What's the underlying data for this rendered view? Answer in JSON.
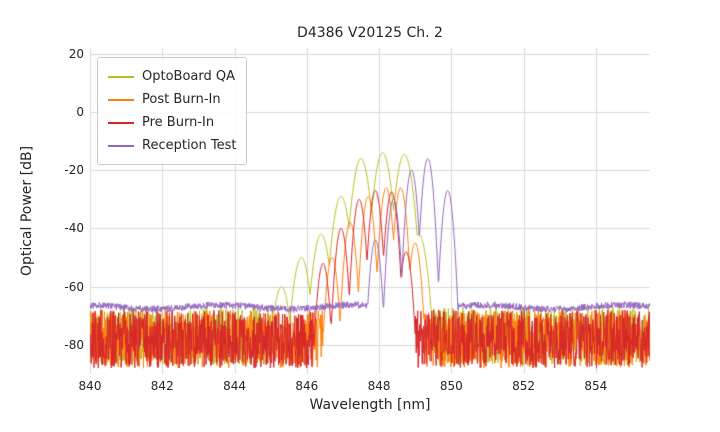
{
  "chart_data": {
    "type": "line",
    "title": "D4386 V20125 Ch. 2",
    "xlabel": "Wavelength [nm]",
    "ylabel": "Optical Power [dB]",
    "xlim": [
      840,
      855.5
    ],
    "ylim": [
      -90,
      22
    ],
    "xticks": [
      840,
      842,
      844,
      846,
      848,
      850,
      852,
      854
    ],
    "yticks": [
      20,
      0,
      -20,
      -40,
      -60,
      -80
    ],
    "grid": true,
    "grid_color": "#d9d9d9",
    "legend_position": "upper left",
    "mode_width_nm": 0.1,
    "series": [
      {
        "name": "OptoBoard QA",
        "color": "#bcbd22",
        "noise_floor_db": -77,
        "noise_amplitude_db": 10,
        "smooth": false,
        "rolloff": 2.2,
        "modes": [
          [
            845.3,
            -60
          ],
          [
            845.85,
            -50
          ],
          [
            846.4,
            -42
          ],
          [
            846.95,
            -29
          ],
          [
            847.5,
            -16
          ],
          [
            848.1,
            -14
          ],
          [
            848.7,
            -14.5
          ],
          [
            849.1,
            -42
          ]
        ]
      },
      {
        "name": "Post Burn-In",
        "color": "#ff7f0e",
        "noise_floor_db": -78,
        "noise_amplitude_db": 10,
        "smooth": false,
        "rolloff": 4.5,
        "modes": [
          [
            846.7,
            -50
          ],
          [
            847.2,
            -38
          ],
          [
            847.7,
            -29
          ],
          [
            848.2,
            -26
          ],
          [
            848.6,
            -26
          ],
          [
            849.0,
            -45
          ]
        ]
      },
      {
        "name": "Pre Burn-In",
        "color": "#d62728",
        "noise_floor_db": -78,
        "noise_amplitude_db": 10,
        "smooth": false,
        "rolloff": 4.5,
        "modes": [
          [
            846.45,
            -52
          ],
          [
            846.95,
            -40
          ],
          [
            847.45,
            -30
          ],
          [
            847.9,
            -27
          ],
          [
            848.35,
            -27.5
          ],
          [
            848.75,
            -48
          ]
        ]
      },
      {
        "name": "Reception Test",
        "color": "#9467bd",
        "noise_floor_db": -67,
        "noise_amplitude_db": 1.2,
        "smooth": true,
        "rolloff": 5,
        "modes": [
          [
            847.9,
            -44
          ],
          [
            848.4,
            -30
          ],
          [
            848.9,
            -20
          ],
          [
            849.35,
            -16
          ],
          [
            849.9,
            -27
          ]
        ]
      }
    ]
  }
}
